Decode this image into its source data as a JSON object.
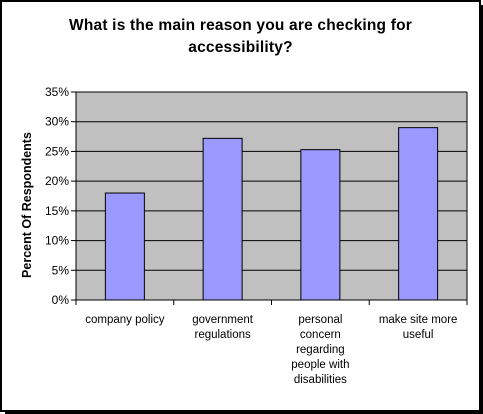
{
  "chart_data": {
    "type": "bar",
    "title": "What is the main reason you are checking for accessibility?",
    "title_lines": [
      "What is the main reason you are checking for",
      "accessibility?"
    ],
    "ylabel": "Percent Of Respondents",
    "xlabel": "",
    "categories": [
      "company policy",
      "government regulations",
      "personal concern regarding people with disabilities",
      "make site more useful"
    ],
    "category_lines": [
      [
        "company policy"
      ],
      [
        "government",
        "regulations"
      ],
      [
        "personal",
        "concern",
        "regarding",
        "people with",
        "disabilities"
      ],
      [
        "make site more",
        "useful"
      ]
    ],
    "values": [
      18,
      27.2,
      25.3,
      29
    ],
    "ylim": [
      0,
      35
    ],
    "yticks": [
      "0%",
      "5%",
      "10%",
      "15%",
      "20%",
      "25%",
      "30%",
      "35%"
    ],
    "grid": true,
    "legend": "none",
    "colors": {
      "bar": "#9999ff",
      "plot_bg": "#c0c0c0",
      "frame": "#000000"
    }
  }
}
